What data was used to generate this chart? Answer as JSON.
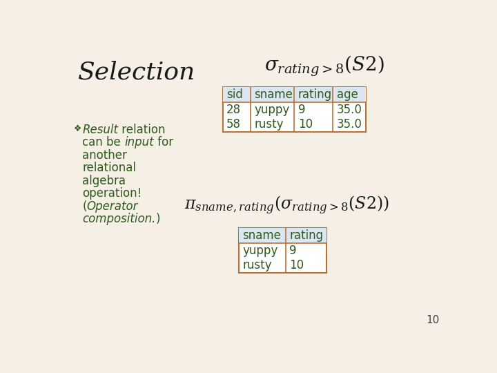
{
  "background_color": "#f5efe6",
  "title": "Selection",
  "title_color": "#1a1a1a",
  "title_fontsize": 26,
  "text_color": "#2d5a1b",
  "table1_headers": [
    "sid",
    "sname",
    "rating",
    "age"
  ],
  "table1_rows": [
    [
      "28",
      "yuppy",
      "9",
      "35.0"
    ],
    [
      "58",
      "rusty",
      "10",
      "35.0"
    ]
  ],
  "table2_headers": [
    "sname",
    "rating"
  ],
  "table2_rows": [
    [
      "yuppy",
      "9"
    ],
    [
      "rusty",
      "10"
    ]
  ],
  "table_header_bg": "#dce6f1",
  "table_border_color": "#b87333",
  "table_text_color": "#2d5a1b",
  "page_number": "10",
  "sigma_formula": "$\\sigma_{rating>8}(S2)$",
  "pi_formula": "$\\pi_{sname,rating}(\\sigma_{rating>8}(S2))$"
}
